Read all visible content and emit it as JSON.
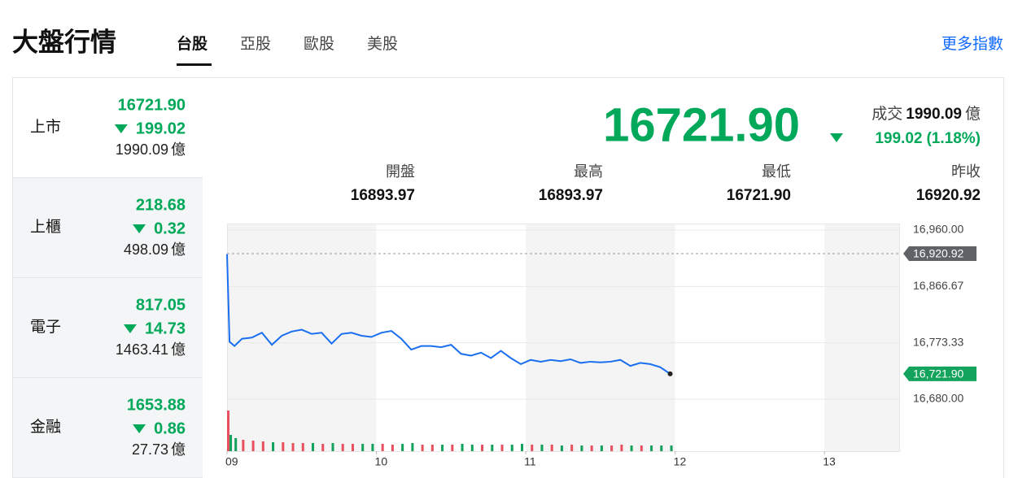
{
  "header": {
    "title": "大盤行情",
    "tabs": [
      "台股",
      "亞股",
      "歐股",
      "美股"
    ],
    "link": "更多指數"
  },
  "indices": [
    {
      "name": "上市",
      "value": "16721.90",
      "change": "199.02",
      "volume": "1990.09",
      "unit": "億"
    },
    {
      "name": "上櫃",
      "value": "218.68",
      "change": "0.32",
      "volume": "498.09",
      "unit": "億"
    },
    {
      "name": "電子",
      "value": "817.05",
      "change": "14.73",
      "volume": "1463.41",
      "unit": "億"
    },
    {
      "name": "金融",
      "value": "1653.88",
      "change": "0.86",
      "volume": "27.73",
      "unit": "億"
    }
  ],
  "summary": {
    "price": "16721.90",
    "volume_label": "成交",
    "volume": "1990.09",
    "unit": "億",
    "change": "199.02",
    "percent": "(1.18%)",
    "stats": [
      {
        "label": "開盤",
        "value": "16893.97"
      },
      {
        "label": "最高",
        "value": "16893.97"
      },
      {
        "label": "最低",
        "value": "16721.90"
      },
      {
        "label": "昨收",
        "value": "16920.92"
      }
    ]
  },
  "chart_data": {
    "type": "line",
    "color": "#1a6ff0",
    "x": [
      0,
      1,
      3,
      6,
      10,
      14,
      18,
      22,
      26,
      30,
      34,
      38,
      42,
      46,
      50,
      54,
      58,
      62,
      66,
      70,
      74,
      78,
      82,
      86,
      90,
      94,
      98,
      102,
      106,
      110,
      114,
      118,
      122,
      126,
      130,
      134,
      138,
      142,
      146,
      150,
      154,
      158,
      162,
      166,
      170,
      174,
      178
    ],
    "values": [
      16920,
      16775,
      16768,
      16780,
      16782,
      16790,
      16770,
      16785,
      16792,
      16795,
      16788,
      16790,
      16772,
      16788,
      16790,
      16785,
      16783,
      16790,
      16793,
      16780,
      16762,
      16768,
      16768,
      16766,
      16770,
      16755,
      16752,
      16757,
      16748,
      16760,
      16748,
      16738,
      16745,
      16742,
      16745,
      16743,
      16746,
      16740,
      16742,
      16741,
      16742,
      16745,
      16735,
      16740,
      16738,
      16733,
      16721.9
    ],
    "xlim": [
      0,
      270
    ],
    "xticks": [
      {
        "value": 0,
        "label": "09"
      },
      {
        "value": 60,
        "label": "10"
      },
      {
        "value": 120,
        "label": "11"
      },
      {
        "value": 180,
        "label": "12"
      },
      {
        "value": 240,
        "label": "13"
      }
    ],
    "ylim": [
      16680,
      16960
    ],
    "yticks": [
      {
        "value": 16680,
        "label": "16,680.00"
      },
      {
        "value": 16773.33,
        "label": "16,773.33"
      },
      {
        "value": 16866.67,
        "label": "16,866.67"
      },
      {
        "value": 16960,
        "label": "16,960.00"
      }
    ],
    "reference": {
      "value": 16920.92,
      "label": "16,920.92"
    },
    "last": {
      "value": 16721.9,
      "label": "16,721.90"
    },
    "volume": {
      "up_color": "#e8505f",
      "down_color": "#12a15a",
      "values": [
        50,
        20,
        16,
        14,
        13,
        12,
        11,
        11,
        10,
        10,
        10,
        9,
        10,
        9,
        9,
        9,
        9,
        9,
        8,
        9,
        10,
        8,
        8,
        8,
        8,
        9,
        8,
        8,
        8,
        8,
        8,
        9,
        8,
        8,
        8,
        7,
        8,
        7,
        7,
        7,
        7,
        8,
        7,
        7,
        7,
        7,
        7
      ]
    }
  }
}
